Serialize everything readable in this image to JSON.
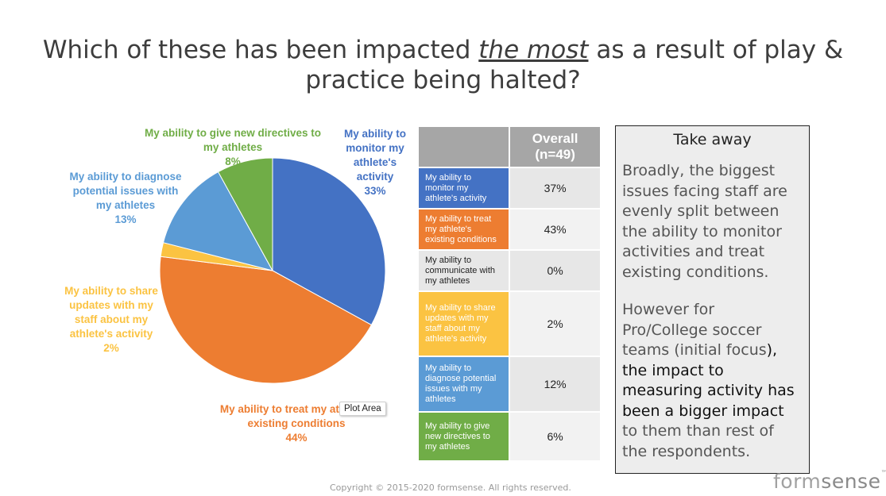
{
  "title": {
    "before": "Which of these has been impacted ",
    "emphasis": "the most",
    "after": " as a result of play & practice being halted?"
  },
  "chart_data": {
    "type": "pie",
    "start_angle_deg": 0,
    "direction": "clockwise",
    "slices": [
      {
        "label": "My ability to monitor my athlete's activity",
        "value": 33,
        "display": "33%",
        "color": "#4472c4"
      },
      {
        "label": "My ability to treat my athlete's existing conditions",
        "value": 44,
        "display": "44%",
        "color": "#ed7d31"
      },
      {
        "label": "My ability to share updates with my staff about my athlete's activity",
        "value": 2,
        "display": "2%",
        "color": "#fbc342"
      },
      {
        "label": "My ability to diagnose potential issues with my athletes",
        "value": 13,
        "display": "13%",
        "color": "#5b9bd5"
      },
      {
        "label": "My ability to give new directives to my athletes",
        "value": 8,
        "display": "8%",
        "color": "#70ad47"
      }
    ],
    "label_lines": {
      "monitor": [
        "My ability to",
        "monitor my",
        "athlete's",
        "activity",
        "33%"
      ],
      "treat": [
        "My ability to treat my athlete's",
        "existing conditions",
        "44%"
      ],
      "share": [
        "My ability to share",
        "updates with my",
        "staff about my",
        "athlete's activity",
        "2%"
      ],
      "diagnose": [
        "My ability to diagnose",
        "potential issues with",
        "my athletes",
        "13%"
      ],
      "directives": [
        "My ability to give new directives to",
        "my athletes",
        "8%"
      ]
    },
    "tooltip": "Plot Area"
  },
  "table": {
    "header": "Overall (n=49)",
    "rows": [
      {
        "label": "My ability to monitor my athlete's activity",
        "value": "37%",
        "color": "#4472c4",
        "text_color": "#ffffff"
      },
      {
        "label": "My ability to treat my athlete's existing conditions",
        "value": "43%",
        "color": "#ed7d31",
        "text_color": "#ffffff"
      },
      {
        "label": "My ability to communicate with my athletes",
        "value": "0%",
        "color": "#e7e7e7",
        "text_color": "#222222"
      },
      {
        "label": "My ability to share updates with my staff about my athlete's activity",
        "value": "2%",
        "color": "#fbc342",
        "text_color": "#ffffff"
      },
      {
        "label": "My ability to diagnose potential issues with my athletes",
        "value": "12%",
        "color": "#5b9bd5",
        "text_color": "#ffffff"
      },
      {
        "label": "My ability to give new directives to my athletes",
        "value": "6%",
        "color": "#70ad47",
        "text_color": "#ffffff"
      }
    ],
    "value_bg": [
      "#e7e7e7",
      "#f2f2f2"
    ]
  },
  "takeaway": {
    "title": "Take away",
    "para1": "Broadly, the biggest issues facing staff are evenly split between the ability to monitor activities and treat existing conditions.",
    "para2_a": "However for Pro/College soccer teams (initial focus",
    "para2_b": "), the impact to measuring activity has been a bigger impact",
    "para2_c": " to them than rest of the respondents."
  },
  "footer": {
    "copyright": "Copyright © 2015-2020 formsense. All rights reserved.",
    "logo_a": "form",
    "logo_b": "sense",
    "logo_tm": "™"
  }
}
